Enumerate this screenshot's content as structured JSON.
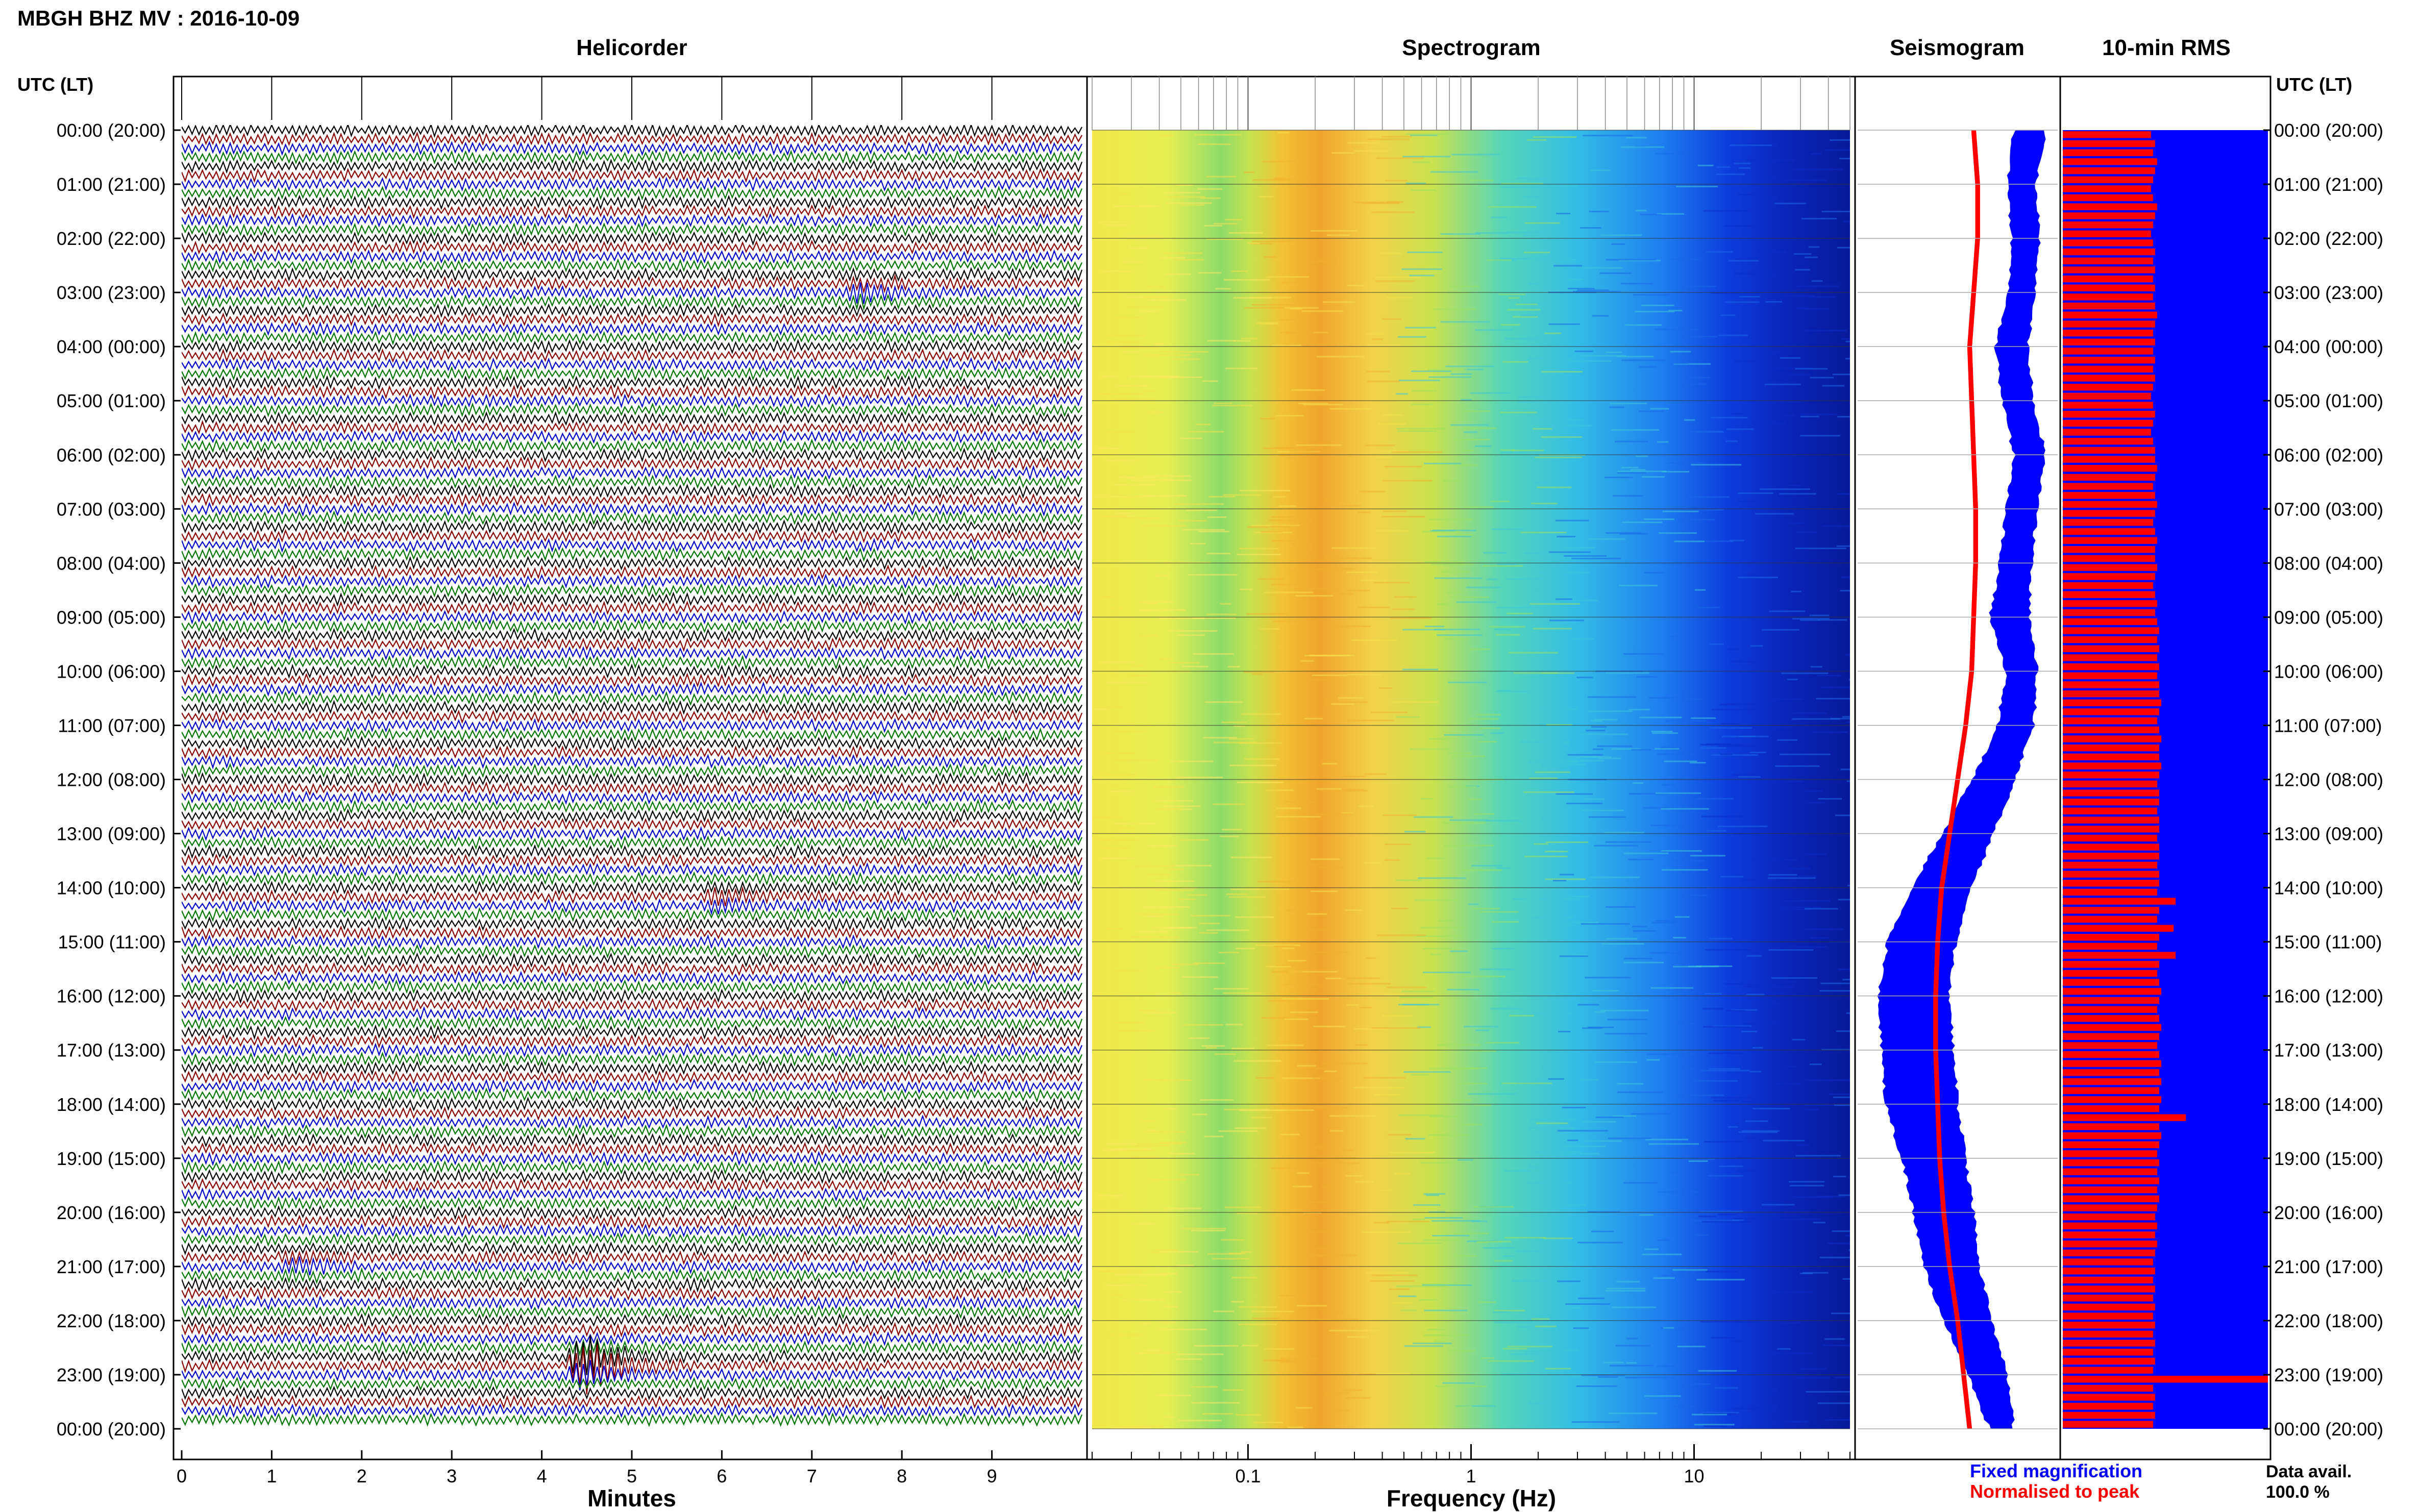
{
  "title": "MBGH BHZ MV : 2016-10-09",
  "colors": {
    "helicorder_traces": [
      "#000000",
      "#8b0000",
      "#0000cc",
      "#007700"
    ],
    "fixed_magnification": "#0000ff",
    "normalised_to_peak": "#ff0000",
    "rms_background": "#0000ff",
    "rms_bars": "#ff0000"
  },
  "chart_data": [
    {
      "type": "line",
      "panel": "helicorder",
      "title": "Helicorder",
      "xlabel": "Minutes",
      "ylabel": "UTC (LT)",
      "xlim": [
        0,
        10
      ],
      "x_ticks": [
        "0",
        "1",
        "2",
        "3",
        "4",
        "5",
        "6",
        "7",
        "8",
        "9"
      ],
      "y_ticks": [
        "00:00 (20:00)",
        "01:00 (21:00)",
        "02:00 (22:00)",
        "03:00 (23:00)",
        "04:00 (00:00)",
        "05:00 (01:00)",
        "06:00 (02:00)",
        "07:00 (03:00)",
        "08:00 (04:00)",
        "09:00 (05:00)",
        "10:00 (06:00)",
        "11:00 (07:00)",
        "12:00 (08:00)",
        "13:00 (09:00)",
        "14:00 (10:00)",
        "15:00 (11:00)",
        "16:00 (12:00)",
        "17:00 (13:00)",
        "18:00 (14:00)",
        "19:00 (15:00)",
        "20:00 (16:00)",
        "21:00 (17:00)",
        "22:00 (18:00)",
        "23:00 (19:00)",
        "00:00 (20:00)"
      ],
      "rows": 144,
      "events": [
        {
          "hour": 22.8,
          "minute": 4.5,
          "relative_amplitude": 1.0
        },
        {
          "hour": 3.0,
          "minute": 7.6,
          "relative_amplitude": 0.25
        },
        {
          "hour": 14.2,
          "minute": 6.0,
          "relative_amplitude": 0.2
        },
        {
          "hour": 21.0,
          "minute": 1.3,
          "relative_amplitude": 0.2
        }
      ]
    },
    {
      "type": "heatmap",
      "panel": "spectrogram",
      "title": "Spectrogram",
      "xlabel": "Frequency (Hz)",
      "x_scale": "log",
      "xlim": [
        0.02,
        50
      ],
      "x_ticks": [
        {
          "value": 0.1,
          "label": "0.1"
        },
        {
          "value": 1,
          "label": "1"
        },
        {
          "value": 10,
          "label": "10"
        }
      ],
      "peak_band_hz": [
        0.15,
        0.45
      ]
    },
    {
      "type": "line",
      "panel": "seismogram",
      "title": "Seismogram",
      "hours": [
        0,
        1,
        2,
        3,
        4,
        5,
        6,
        7,
        8,
        9,
        10,
        11,
        12,
        13,
        14,
        15,
        16,
        17,
        18,
        19,
        20,
        21,
        22,
        23,
        24
      ],
      "series": [
        {
          "name": "Fixed magnification",
          "center": [
            0.86,
            0.82,
            0.84,
            0.82,
            0.77,
            0.8,
            0.86,
            0.82,
            0.79,
            0.76,
            0.82,
            0.79,
            0.68,
            0.55,
            0.42,
            0.32,
            0.28,
            0.3,
            0.32,
            0.38,
            0.43,
            0.47,
            0.55,
            0.65,
            0.72
          ],
          "half_width": [
            0.08,
            0.07,
            0.07,
            0.07,
            0.08,
            0.08,
            0.08,
            0.08,
            0.08,
            0.1,
            0.08,
            0.09,
            0.11,
            0.13,
            0.15,
            0.17,
            0.18,
            0.18,
            0.18,
            0.16,
            0.15,
            0.14,
            0.12,
            0.1,
            0.06
          ]
        },
        {
          "name": "Normalised to peak",
          "center": [
            0.58,
            0.6,
            0.6,
            0.58,
            0.56,
            0.57,
            0.58,
            0.59,
            0.59,
            0.58,
            0.57,
            0.54,
            0.5,
            0.46,
            0.42,
            0.4,
            0.39,
            0.39,
            0.4,
            0.41,
            0.43,
            0.46,
            0.5,
            0.53,
            0.56
          ],
          "half_width": 0.012
        }
      ]
    },
    {
      "type": "bar",
      "panel": "rms",
      "title": "10-min RMS",
      "ylabel": "UTC (LT)",
      "bar_count": 144,
      "values": [
        0.43,
        0.45,
        0.44,
        0.46,
        0.45,
        0.44,
        0.43,
        0.44,
        0.46,
        0.45,
        0.44,
        0.43,
        0.44,
        0.45,
        0.44,
        0.45,
        0.44,
        0.45,
        0.44,
        0.45,
        0.46,
        0.45,
        0.44,
        0.45,
        0.44,
        0.45,
        0.44,
        0.45,
        0.44,
        0.43,
        0.44,
        0.45,
        0.44,
        0.43,
        0.44,
        0.45,
        0.45,
        0.46,
        0.45,
        0.44,
        0.45,
        0.46,
        0.45,
        0.44,
        0.45,
        0.46,
        0.45,
        0.45,
        0.46,
        0.45,
        0.44,
        0.45,
        0.46,
        0.45,
        0.46,
        0.47,
        0.46,
        0.47,
        0.46,
        0.47,
        0.46,
        0.47,
        0.47,
        0.48,
        0.47,
        0.46,
        0.47,
        0.48,
        0.47,
        0.47,
        0.48,
        0.47,
        0.46,
        0.47,
        0.47,
        0.46,
        0.47,
        0.47,
        0.46,
        0.47,
        0.47,
        0.46,
        0.47,
        0.47,
        0.46,
        0.55,
        0.47,
        0.46,
        0.54,
        0.47,
        0.46,
        0.55,
        0.47,
        0.46,
        0.47,
        0.48,
        0.47,
        0.46,
        0.47,
        0.48,
        0.47,
        0.46,
        0.47,
        0.48,
        0.47,
        0.48,
        0.47,
        0.48,
        0.47,
        0.6,
        0.47,
        0.48,
        0.47,
        0.46,
        0.47,
        0.46,
        0.47,
        0.46,
        0.47,
        0.46,
        0.45,
        0.46,
        0.45,
        0.46,
        0.45,
        0.44,
        0.45,
        0.44,
        0.45,
        0.44,
        0.45,
        0.44,
        0.45,
        0.44,
        0.45,
        0.44,
        0.45,
        0.44,
        1.0,
        0.44,
        0.45,
        0.44,
        0.45,
        0.44
      ]
    }
  ],
  "legend": {
    "fixed": "Fixed magnification",
    "normalised": "Normalised to peak",
    "data_avail_label": "Data avail.",
    "data_avail_value": "100.0 %"
  }
}
